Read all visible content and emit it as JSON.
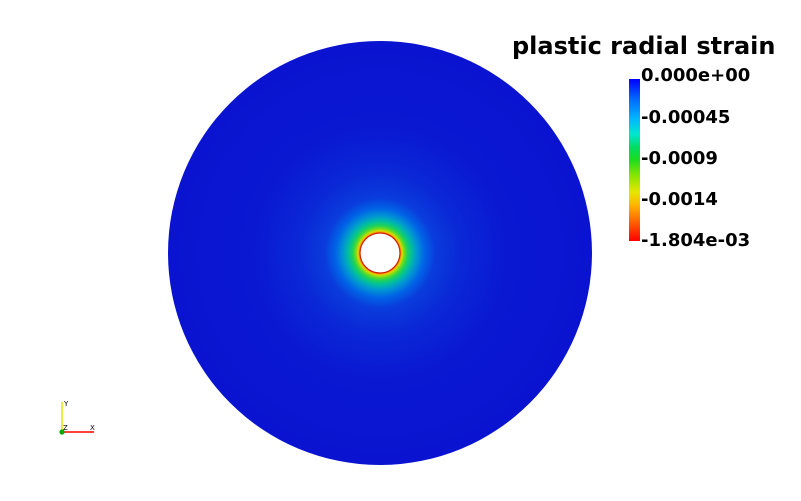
{
  "legend": {
    "title": "plastic radial strain",
    "ticks": [
      "0.000e+00",
      "-0.00045",
      "-0.0009",
      "-0.0014",
      "-1.804e-03"
    ],
    "range": [
      -0.001804,
      0.0
    ],
    "colormap": [
      "#0000ff",
      "#00b4ff",
      "#1edc1e",
      "#e6e600",
      "#ff0000"
    ]
  },
  "field": {
    "name": "plastic radial strain",
    "min": -0.001804,
    "max": 0.0,
    "background_color": "#ffffff",
    "domain_color": "#0a14d2"
  },
  "axes": {
    "x": "X",
    "y": "Y",
    "z": "Z",
    "x_color": "#ff0000",
    "y_color": "#ffff00",
    "z_color": "#00aa00"
  }
}
